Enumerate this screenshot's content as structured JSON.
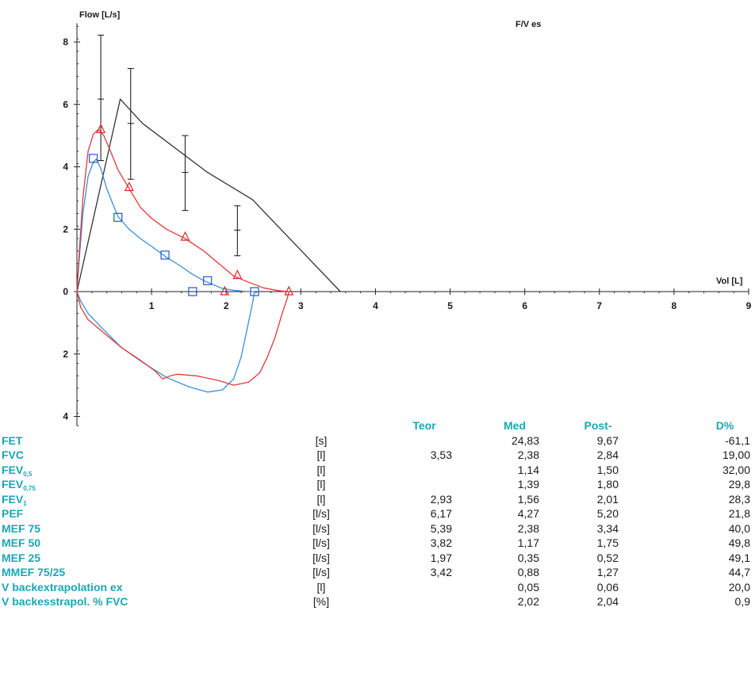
{
  "chart_data": {
    "type": "line",
    "title": "F/V es",
    "xlabel": "Vol [L]",
    "ylabel": "Flow [L/s]",
    "xlim": [
      0,
      9
    ],
    "ylim": [
      -4.3,
      8.6
    ],
    "x_ticks": [
      "1",
      "2",
      "3",
      "4",
      "5",
      "6",
      "7",
      "8",
      "9"
    ],
    "y_ticks_positive": [
      "8",
      "6",
      "4",
      "2",
      "0"
    ],
    "y_ticks_negative": [
      "2",
      "4"
    ],
    "grid": false,
    "colors": {
      "predicted": "#333333",
      "pre": "#3a8fd6",
      "post": "#e0393b",
      "marker_pre": "#2255cc",
      "marker_post": "#d42a2a",
      "errorbar": "#222222"
    },
    "series": [
      {
        "key": "predicted",
        "x": [
          0,
          0.58,
          0.88,
          1.75,
          2.35,
          3.53
        ],
        "y": [
          0,
          6.17,
          5.39,
          3.82,
          2.95,
          0
        ]
      },
      {
        "key": "pre_exp",
        "x": [
          0,
          0.03,
          0.08,
          0.15,
          0.22,
          0.26,
          0.32,
          0.4,
          0.55,
          0.7,
          0.85,
          1.0,
          1.2,
          1.4,
          1.55,
          1.7,
          1.8,
          1.95,
          2.1,
          2.25,
          2.38
        ],
        "y": [
          0,
          1.0,
          2.5,
          3.7,
          4.15,
          4.25,
          3.95,
          3.3,
          2.4,
          2.0,
          1.7,
          1.45,
          1.1,
          0.8,
          0.55,
          0.35,
          0.25,
          0.1,
          0.04,
          0.01,
          0
        ]
      },
      {
        "key": "post_exp",
        "x": [
          0,
          0.03,
          0.08,
          0.15,
          0.22,
          0.29,
          0.36,
          0.45,
          0.55,
          0.7,
          0.85,
          1.0,
          1.2,
          1.45,
          1.7,
          1.9,
          2.1,
          2.3,
          2.5,
          2.7,
          2.84
        ],
        "y": [
          0,
          1.2,
          3.0,
          4.5,
          5.05,
          5.2,
          5.0,
          4.5,
          3.9,
          3.3,
          2.7,
          2.35,
          2.0,
          1.7,
          1.3,
          0.9,
          0.5,
          0.3,
          0.12,
          0.03,
          0
        ]
      },
      {
        "key": "pre_insp",
        "x": [
          0,
          0.05,
          0.15,
          0.35,
          0.6,
          0.9,
          1.2,
          1.5,
          1.75,
          1.95,
          2.1,
          2.2,
          2.28,
          2.35,
          2.38
        ],
        "y": [
          0,
          -0.3,
          -0.7,
          -1.2,
          -1.8,
          -2.3,
          -2.75,
          -3.05,
          -3.22,
          -3.15,
          -2.8,
          -2.1,
          -1.2,
          -0.4,
          0
        ]
      },
      {
        "key": "post_insp",
        "x": [
          0,
          0.05,
          0.15,
          0.35,
          0.6,
          0.85,
          1.05,
          1.15,
          1.25,
          1.35,
          1.6,
          1.9,
          2.1,
          2.3,
          2.45,
          2.55,
          2.65,
          2.75,
          2.82,
          2.84
        ],
        "y": [
          0,
          -0.5,
          -0.9,
          -1.3,
          -1.8,
          -2.2,
          -2.55,
          -2.8,
          -2.7,
          -2.65,
          -2.7,
          -2.85,
          -3.0,
          -2.9,
          -2.6,
          -2.1,
          -1.5,
          -0.7,
          -0.2,
          0
        ]
      }
    ],
    "markers": [
      {
        "series": "pre",
        "shape": "square",
        "x": [
          0.22,
          0.55,
          1.18,
          1.75,
          1.55,
          2.38
        ],
        "y": [
          4.27,
          2.38,
          1.17,
          0.35,
          0,
          0
        ]
      },
      {
        "series": "post",
        "shape": "triangle",
        "x": [
          0.32,
          0.7,
          1.45,
          2.15,
          1.98,
          2.84
        ],
        "y": [
          5.2,
          3.34,
          1.75,
          0.52,
          0,
          0
        ]
      }
    ],
    "error_bars": [
      {
        "x": 0.32,
        "lo": 4.2,
        "mid": 6.17,
        "hi": 8.22
      },
      {
        "x": 0.72,
        "lo": 3.6,
        "mid": 5.39,
        "hi": 7.15
      },
      {
        "x": 1.45,
        "lo": 2.6,
        "mid": 3.82,
        "hi": 5.0
      },
      {
        "x": 2.15,
        "lo": 1.15,
        "mid": 1.97,
        "hi": 2.75
      }
    ]
  },
  "table": {
    "headers": {
      "teor": "Teor",
      "med": "Med",
      "post": "Post-",
      "delta": "D%"
    },
    "rows": [
      {
        "name": "FET",
        "sub": "",
        "unit": "[s]",
        "teor": "",
        "med": "24,83",
        "post": "9,67",
        "delta": "-61,1"
      },
      {
        "name": "FVC",
        "sub": "",
        "unit": "[l]",
        "teor": "3,53",
        "med": "2,38",
        "post": "2,84",
        "delta": "19,00"
      },
      {
        "name": "FEV",
        "sub": "0,5",
        "unit": "[l]",
        "teor": "",
        "med": "1,14",
        "post": "1,50",
        "delta": "32,00"
      },
      {
        "name": "FEV",
        "sub": "0,75",
        "unit": "[l]",
        "teor": "",
        "med": "1,39",
        "post": "1,80",
        "delta": "29,8"
      },
      {
        "name": "FEV",
        "sub": "1",
        "unit": "[l]",
        "teor": "2,93",
        "med": "1,56",
        "post": "2,01",
        "delta": "28,3"
      },
      {
        "name": "PEF",
        "sub": "",
        "unit": "[l/s]",
        "teor": "6,17",
        "med": "4,27",
        "post": "5,20",
        "delta": "21,8"
      },
      {
        "name": "MEF 75",
        "sub": "",
        "unit": "[l/s]",
        "teor": "5,39",
        "med": "2,38",
        "post": "3,34",
        "delta": "40,0"
      },
      {
        "name": "MEF 50",
        "sub": "",
        "unit": "[l/s]",
        "teor": "3,82",
        "med": "1,17",
        "post": "1,75",
        "delta": "49,8"
      },
      {
        "name": "MEF 25",
        "sub": "",
        "unit": "[l/s]",
        "teor": "1,97",
        "med": "0,35",
        "post": "0,52",
        "delta": "49,1"
      },
      {
        "name": "MMEF 75/25",
        "sub": "",
        "unit": "[l/s]",
        "teor": "3,42",
        "med": "0,88",
        "post": "1,27",
        "delta": "44,7"
      },
      {
        "name": "V backextrapolation ex",
        "sub": "",
        "unit": "[l]",
        "teor": "",
        "med": "0,05",
        "post": "0,06",
        "delta": "20,0"
      },
      {
        "name": "V backesstrapol. % FVC",
        "sub": "",
        "unit": "[%]",
        "teor": "",
        "med": "2,02",
        "post": "2,04",
        "delta": "0,9"
      }
    ]
  }
}
